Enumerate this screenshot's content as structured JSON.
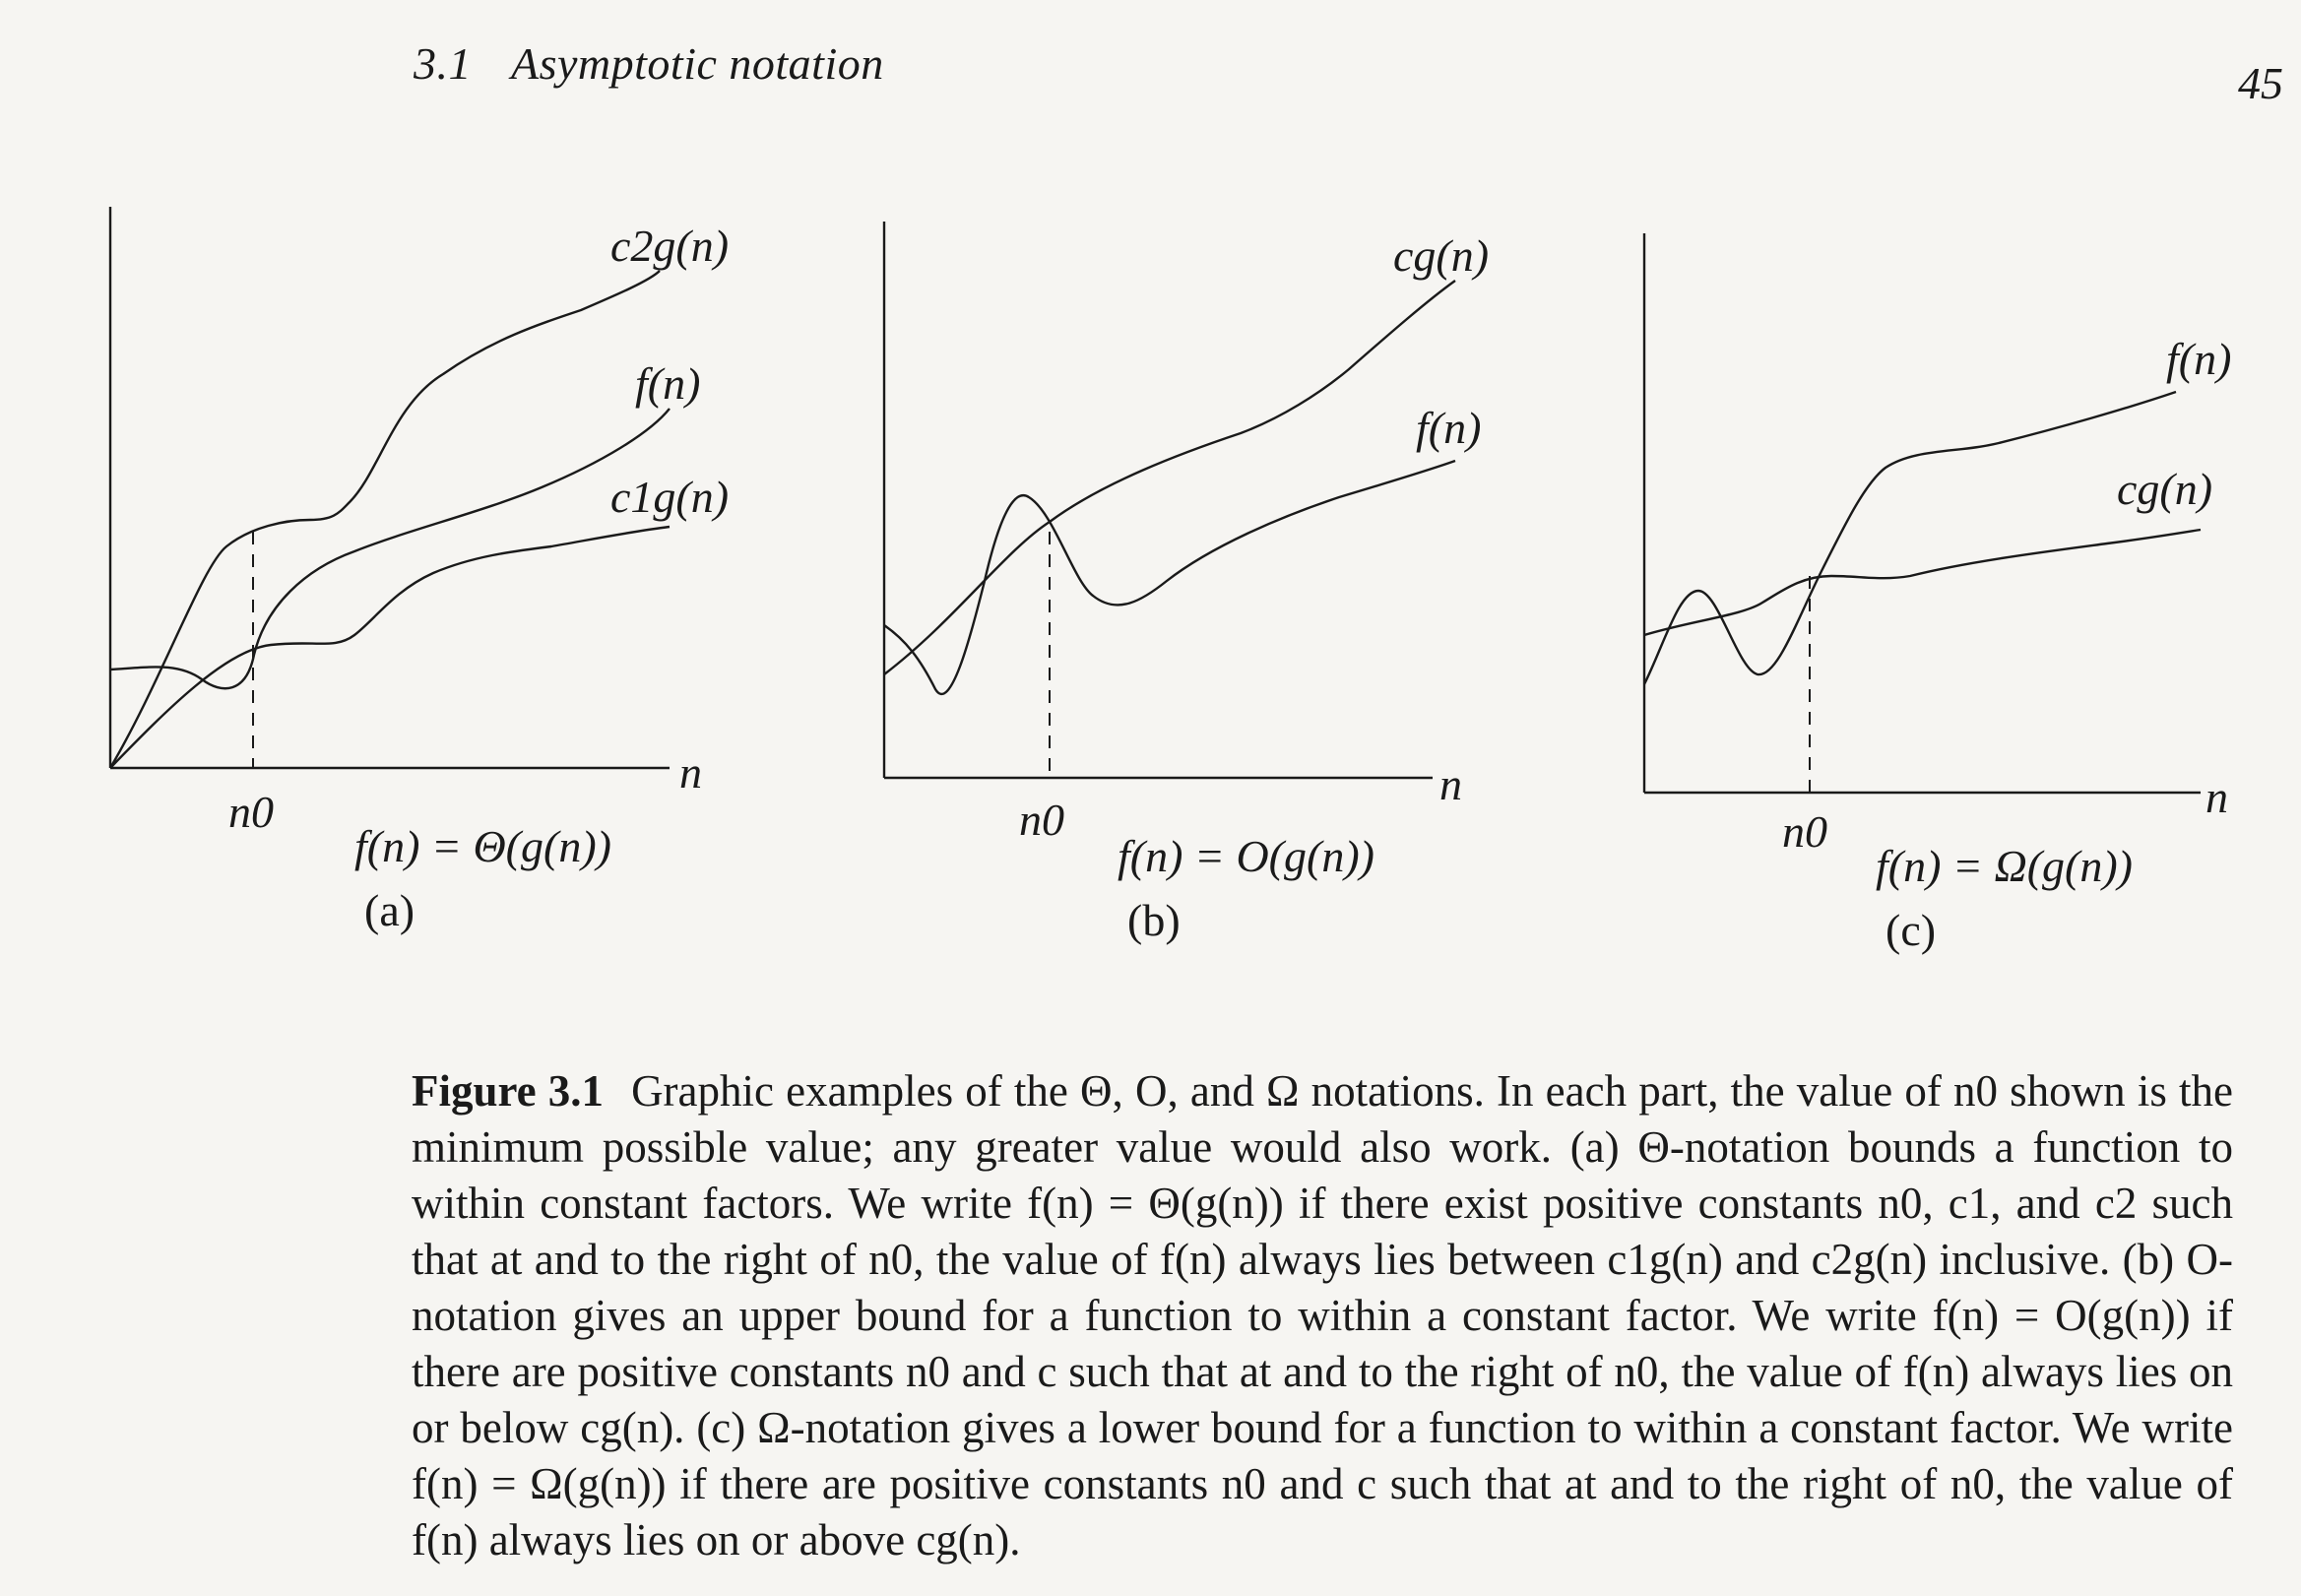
{
  "header": {
    "section_number": "3.1",
    "section_title": "Asymptotic notation",
    "page_number": "45"
  },
  "figure": {
    "panels": [
      {
        "id": "a",
        "part_label": "(a)",
        "relation": "f(n) = Θ(g(n))",
        "x_axis_label": "n",
        "threshold_label": "n0",
        "curves": [
          "c2g(n)",
          "f(n)",
          "c1g(n)"
        ]
      },
      {
        "id": "b",
        "part_label": "(b)",
        "relation": "f(n) = O(g(n))",
        "x_axis_label": "n",
        "threshold_label": "n0",
        "curves": [
          "cg(n)",
          "f(n)"
        ]
      },
      {
        "id": "c",
        "part_label": "(c)",
        "relation": "f(n) = Ω(g(n))",
        "x_axis_label": "n",
        "threshold_label": "n0",
        "curves": [
          "f(n)",
          "cg(n)"
        ]
      }
    ]
  },
  "caption": {
    "label": "Figure 3.1",
    "text": "Graphic examples of the Θ, O, and Ω notations. In each part, the value of n0 shown is the minimum possible value; any greater value would also work. (a) Θ-notation bounds a function to within constant factors. We write f(n) = Θ(g(n)) if there exist positive constants n0, c1, and c2 such that at and to the right of n0, the value of f(n) always lies between c1g(n) and c2g(n) inclusive. (b) O-notation gives an upper bound for a function to within a constant factor. We write f(n) = O(g(n)) if there are positive constants n0 and c such that at and to the right of n0, the value of f(n) always lies on or below cg(n). (c) Ω-notation gives a lower bound for a function to within a constant factor. We write f(n) = Ω(g(n)) if there are positive constants n0 and c such that at and to the right of n0, the value of f(n) always lies on or above cg(n)."
  }
}
